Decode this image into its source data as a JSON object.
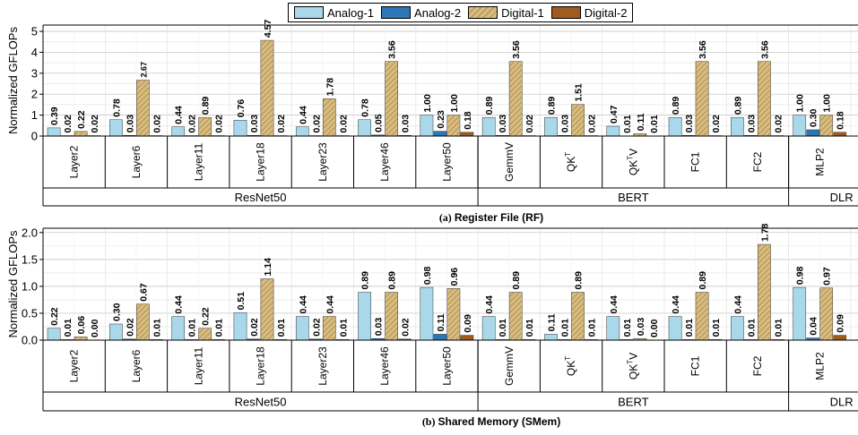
{
  "legend": [
    {
      "label": "Analog-1",
      "color": "#a9d8ea",
      "hatch": false
    },
    {
      "label": "Analog-2",
      "color": "#2b77b8",
      "hatch": false
    },
    {
      "label": "Digital-1",
      "color": "#d9bc7c",
      "hatch": true
    },
    {
      "label": "Digital-2",
      "color": "#a15b1e",
      "hatch": false
    }
  ],
  "chart_data": [
    {
      "type": "bar",
      "panel_letter": "(a)",
      "caption": "Register File (RF)",
      "ylabel": "Normalized GFLOPs",
      "ylim": [
        0,
        5.3
      ],
      "yticks": [
        "0",
        "1",
        "2",
        "3",
        "4",
        "5"
      ],
      "ytick_values": [
        0,
        1,
        2,
        3,
        4,
        5
      ],
      "series_names": [
        "Analog-1",
        "Analog-2",
        "Digital-1",
        "Digital-2"
      ],
      "categories": [
        "Layer2",
        "Layer6",
        "Layer11",
        "Layer18",
        "Layer23",
        "Layer46",
        "Layer50",
        "GemmV",
        "QKT",
        "QKTV",
        "FC1",
        "FC2",
        "MLP2"
      ],
      "values": [
        [
          0.39,
          0.02,
          0.22,
          0.02
        ],
        [
          0.78,
          0.03,
          2.67,
          0.02
        ],
        [
          0.44,
          0.02,
          0.89,
          0.02
        ],
        [
          0.76,
          0.03,
          4.57,
          0.02
        ],
        [
          0.44,
          0.02,
          1.78,
          0.02
        ],
        [
          0.78,
          0.05,
          3.56,
          0.03
        ],
        [
          1.0,
          0.23,
          1.0,
          0.18
        ],
        [
          0.89,
          0.03,
          3.56,
          0.02
        ],
        [
          0.89,
          0.03,
          1.51,
          0.02
        ],
        [
          0.47,
          0.01,
          0.11,
          0.01
        ],
        [
          0.89,
          0.03,
          3.56,
          0.02
        ],
        [
          0.89,
          0.03,
          3.56,
          0.02
        ],
        [
          1.0,
          0.3,
          1.0,
          0.18
        ]
      ],
      "value_labels": [
        [
          "0.39",
          "0.02",
          "0.22",
          "0.02"
        ],
        [
          "0.78",
          "0.03",
          "2.67",
          "0.02"
        ],
        [
          "0.44",
          "0.02",
          "0.89",
          "0.02"
        ],
        [
          "0.76",
          "0.03",
          "4.57",
          "0.02"
        ],
        [
          "0.44",
          "0.02",
          "1.78",
          "0.02"
        ],
        [
          "0.78",
          "0.05",
          "3.56",
          "0.03"
        ],
        [
          "1.00",
          "0.23",
          "1.00",
          "0.18"
        ],
        [
          "0.89",
          "0.03",
          "3.56",
          "0.02"
        ],
        [
          "0.89",
          "0.03",
          "1.51",
          "0.02"
        ],
        [
          "0.47",
          "0.01",
          "0.11",
          "0.01"
        ],
        [
          "0.89",
          "0.03",
          "3.56",
          "0.02"
        ],
        [
          "0.89",
          "0.03",
          "3.56",
          "0.02"
        ],
        [
          "1.00",
          "0.30",
          "1.00",
          "0.18"
        ]
      ],
      "groups": [
        {
          "label": "ResNet50",
          "count": 7
        },
        {
          "label": "BERT",
          "count": 5
        },
        {
          "label": "DLR",
          "count": 1
        }
      ]
    },
    {
      "type": "bar",
      "panel_letter": "(b)",
      "caption": "Shared Memory (SMem)",
      "ylabel": "Normalized GFLOPs",
      "ylim": [
        0,
        2.08
      ],
      "yticks": [
        "0.0",
        "0.5",
        "1.0",
        "1.5",
        "2.0"
      ],
      "ytick_values": [
        0,
        0.5,
        1.0,
        1.5,
        2.0
      ],
      "series_names": [
        "Analog-1",
        "Analog-2",
        "Digital-1",
        "Digital-2"
      ],
      "categories": [
        "Layer2",
        "Layer6",
        "Layer11",
        "Layer18",
        "Layer23",
        "Layer46",
        "Layer50",
        "GemmV",
        "QKT",
        "QKTV",
        "FC1",
        "FC2",
        "MLP2"
      ],
      "values": [
        [
          0.22,
          0.01,
          0.06,
          0.0
        ],
        [
          0.3,
          0.02,
          0.67,
          0.01
        ],
        [
          0.44,
          0.01,
          0.22,
          0.01
        ],
        [
          0.51,
          0.02,
          1.14,
          0.01
        ],
        [
          0.44,
          0.02,
          0.44,
          0.01
        ],
        [
          0.89,
          0.03,
          0.89,
          0.02
        ],
        [
          0.98,
          0.11,
          0.96,
          0.09
        ],
        [
          0.44,
          0.01,
          0.89,
          0.01
        ],
        [
          0.11,
          0.01,
          0.89,
          0.01
        ],
        [
          0.44,
          0.01,
          0.03,
          0.0
        ],
        [
          0.44,
          0.01,
          0.89,
          0.01
        ],
        [
          0.44,
          0.01,
          1.78,
          0.01
        ],
        [
          0.98,
          0.04,
          0.97,
          0.09
        ]
      ],
      "value_labels": [
        [
          "0.22",
          "0.01",
          "0.06",
          "0.00"
        ],
        [
          "0.30",
          "0.02",
          "0.67",
          "0.01"
        ],
        [
          "0.44",
          "0.01",
          "0.22",
          "0.01"
        ],
        [
          "0.51",
          "0.02",
          "1.14",
          "0.01"
        ],
        [
          "0.44",
          "0.02",
          "0.44",
          "0.01"
        ],
        [
          "0.89",
          "0.03",
          "0.89",
          "0.02"
        ],
        [
          "0.98",
          "0.11",
          "0.96",
          "0.09"
        ],
        [
          "0.44",
          "0.01",
          "0.89",
          "0.01"
        ],
        [
          "0.11",
          "0.01",
          "0.89",
          "0.01"
        ],
        [
          "0.44",
          "0.01",
          "0.03",
          "0.00"
        ],
        [
          "0.44",
          "0.01",
          "0.89",
          "0.01"
        ],
        [
          "0.44",
          "0.01",
          "1.78",
          "0.01"
        ],
        [
          "0.98",
          "0.04",
          "0.97",
          "0.09"
        ]
      ],
      "groups": [
        {
          "label": "ResNet50",
          "count": 7
        },
        {
          "label": "BERT",
          "count": 5
        },
        {
          "label": "DLR",
          "count": 1
        }
      ]
    }
  ]
}
